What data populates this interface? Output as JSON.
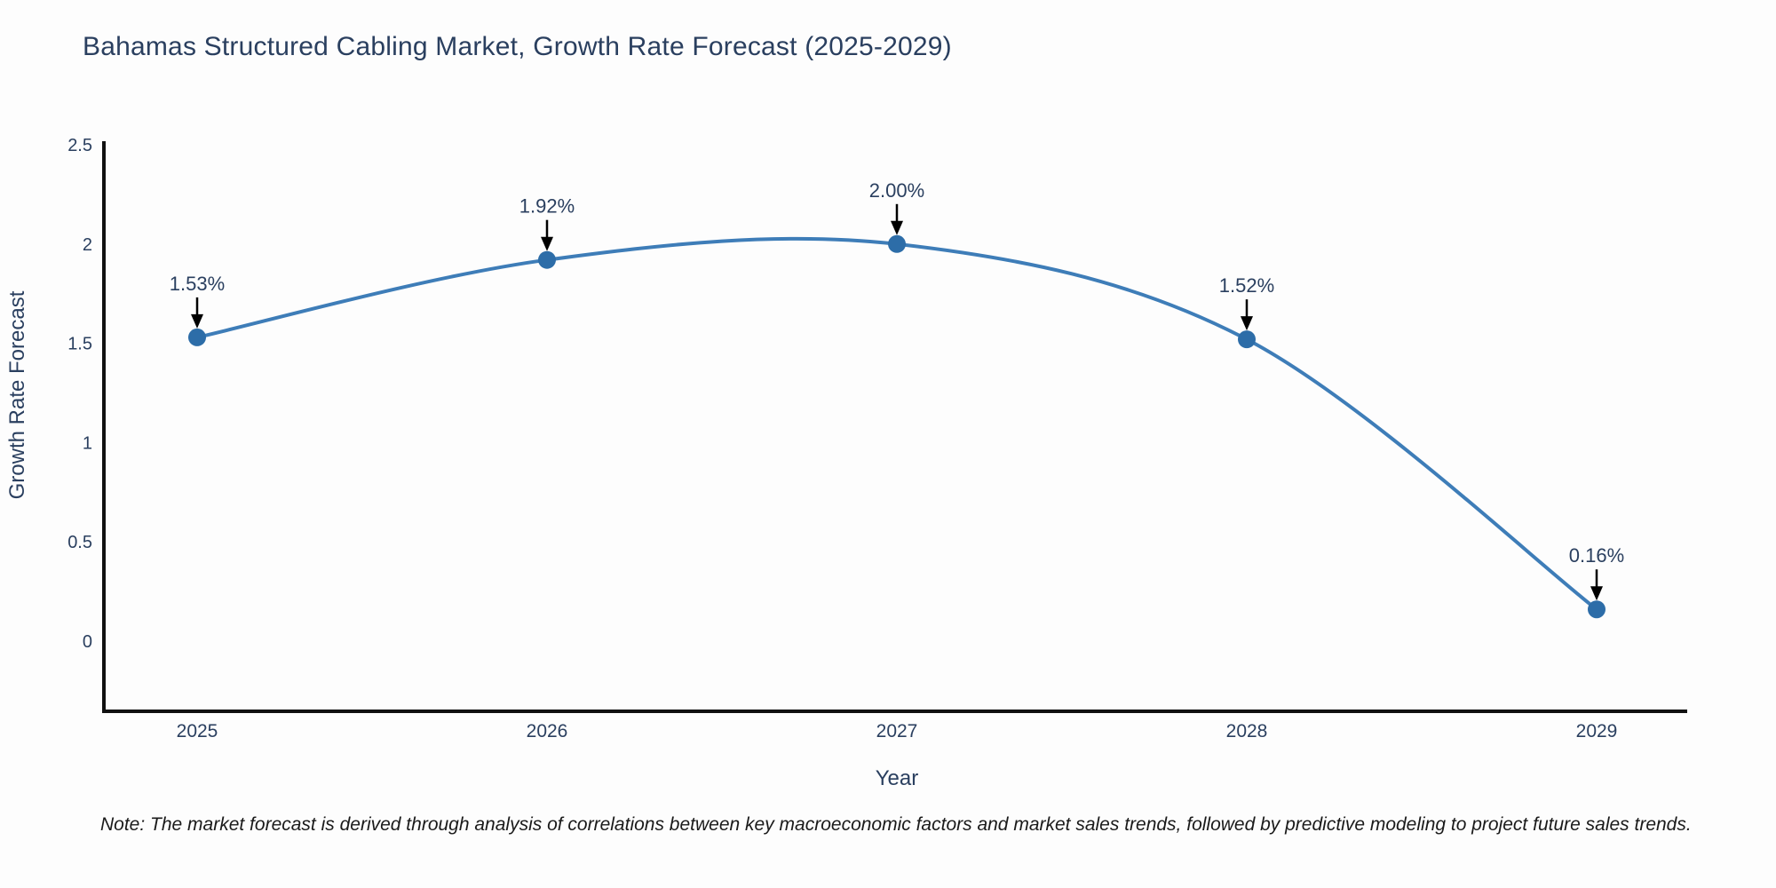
{
  "chart_data": {
    "type": "line",
    "title": "Bahamas Structured Cabling Market, Growth Rate Forecast (2025-2029)",
    "xlabel": "Year",
    "ylabel": "Growth Rate Forecast",
    "x": [
      2025,
      2026,
      2027,
      2028,
      2029
    ],
    "y": [
      1.53,
      1.92,
      2.0,
      1.52,
      0.16
    ],
    "point_labels": [
      "1.53%",
      "1.92%",
      "2.00%",
      "1.52%",
      "0.16%"
    ],
    "xtick_labels": [
      "2025",
      "2026",
      "2027",
      "2028",
      "2029"
    ],
    "yticks": [
      0,
      0.5,
      1,
      1.5,
      2,
      2.5
    ],
    "ytick_labels": [
      "0",
      "0.5",
      "1",
      "1.5",
      "2",
      "2.5"
    ],
    "ylim": [
      -0.35,
      2.5
    ],
    "grid": false,
    "legend": false,
    "line_shape": "spline",
    "annotation_arrows": true,
    "colors": {
      "line": "#3e7db8",
      "marker": "#2d6da8",
      "axis": "#111111",
      "text": "#2a3f5f",
      "note": "#1a1a1a"
    },
    "note": "Note: The market forecast is derived through analysis of correlations between key macroeconomic factors and market sales trends, followed by predictive modeling to project future sales trends."
  }
}
